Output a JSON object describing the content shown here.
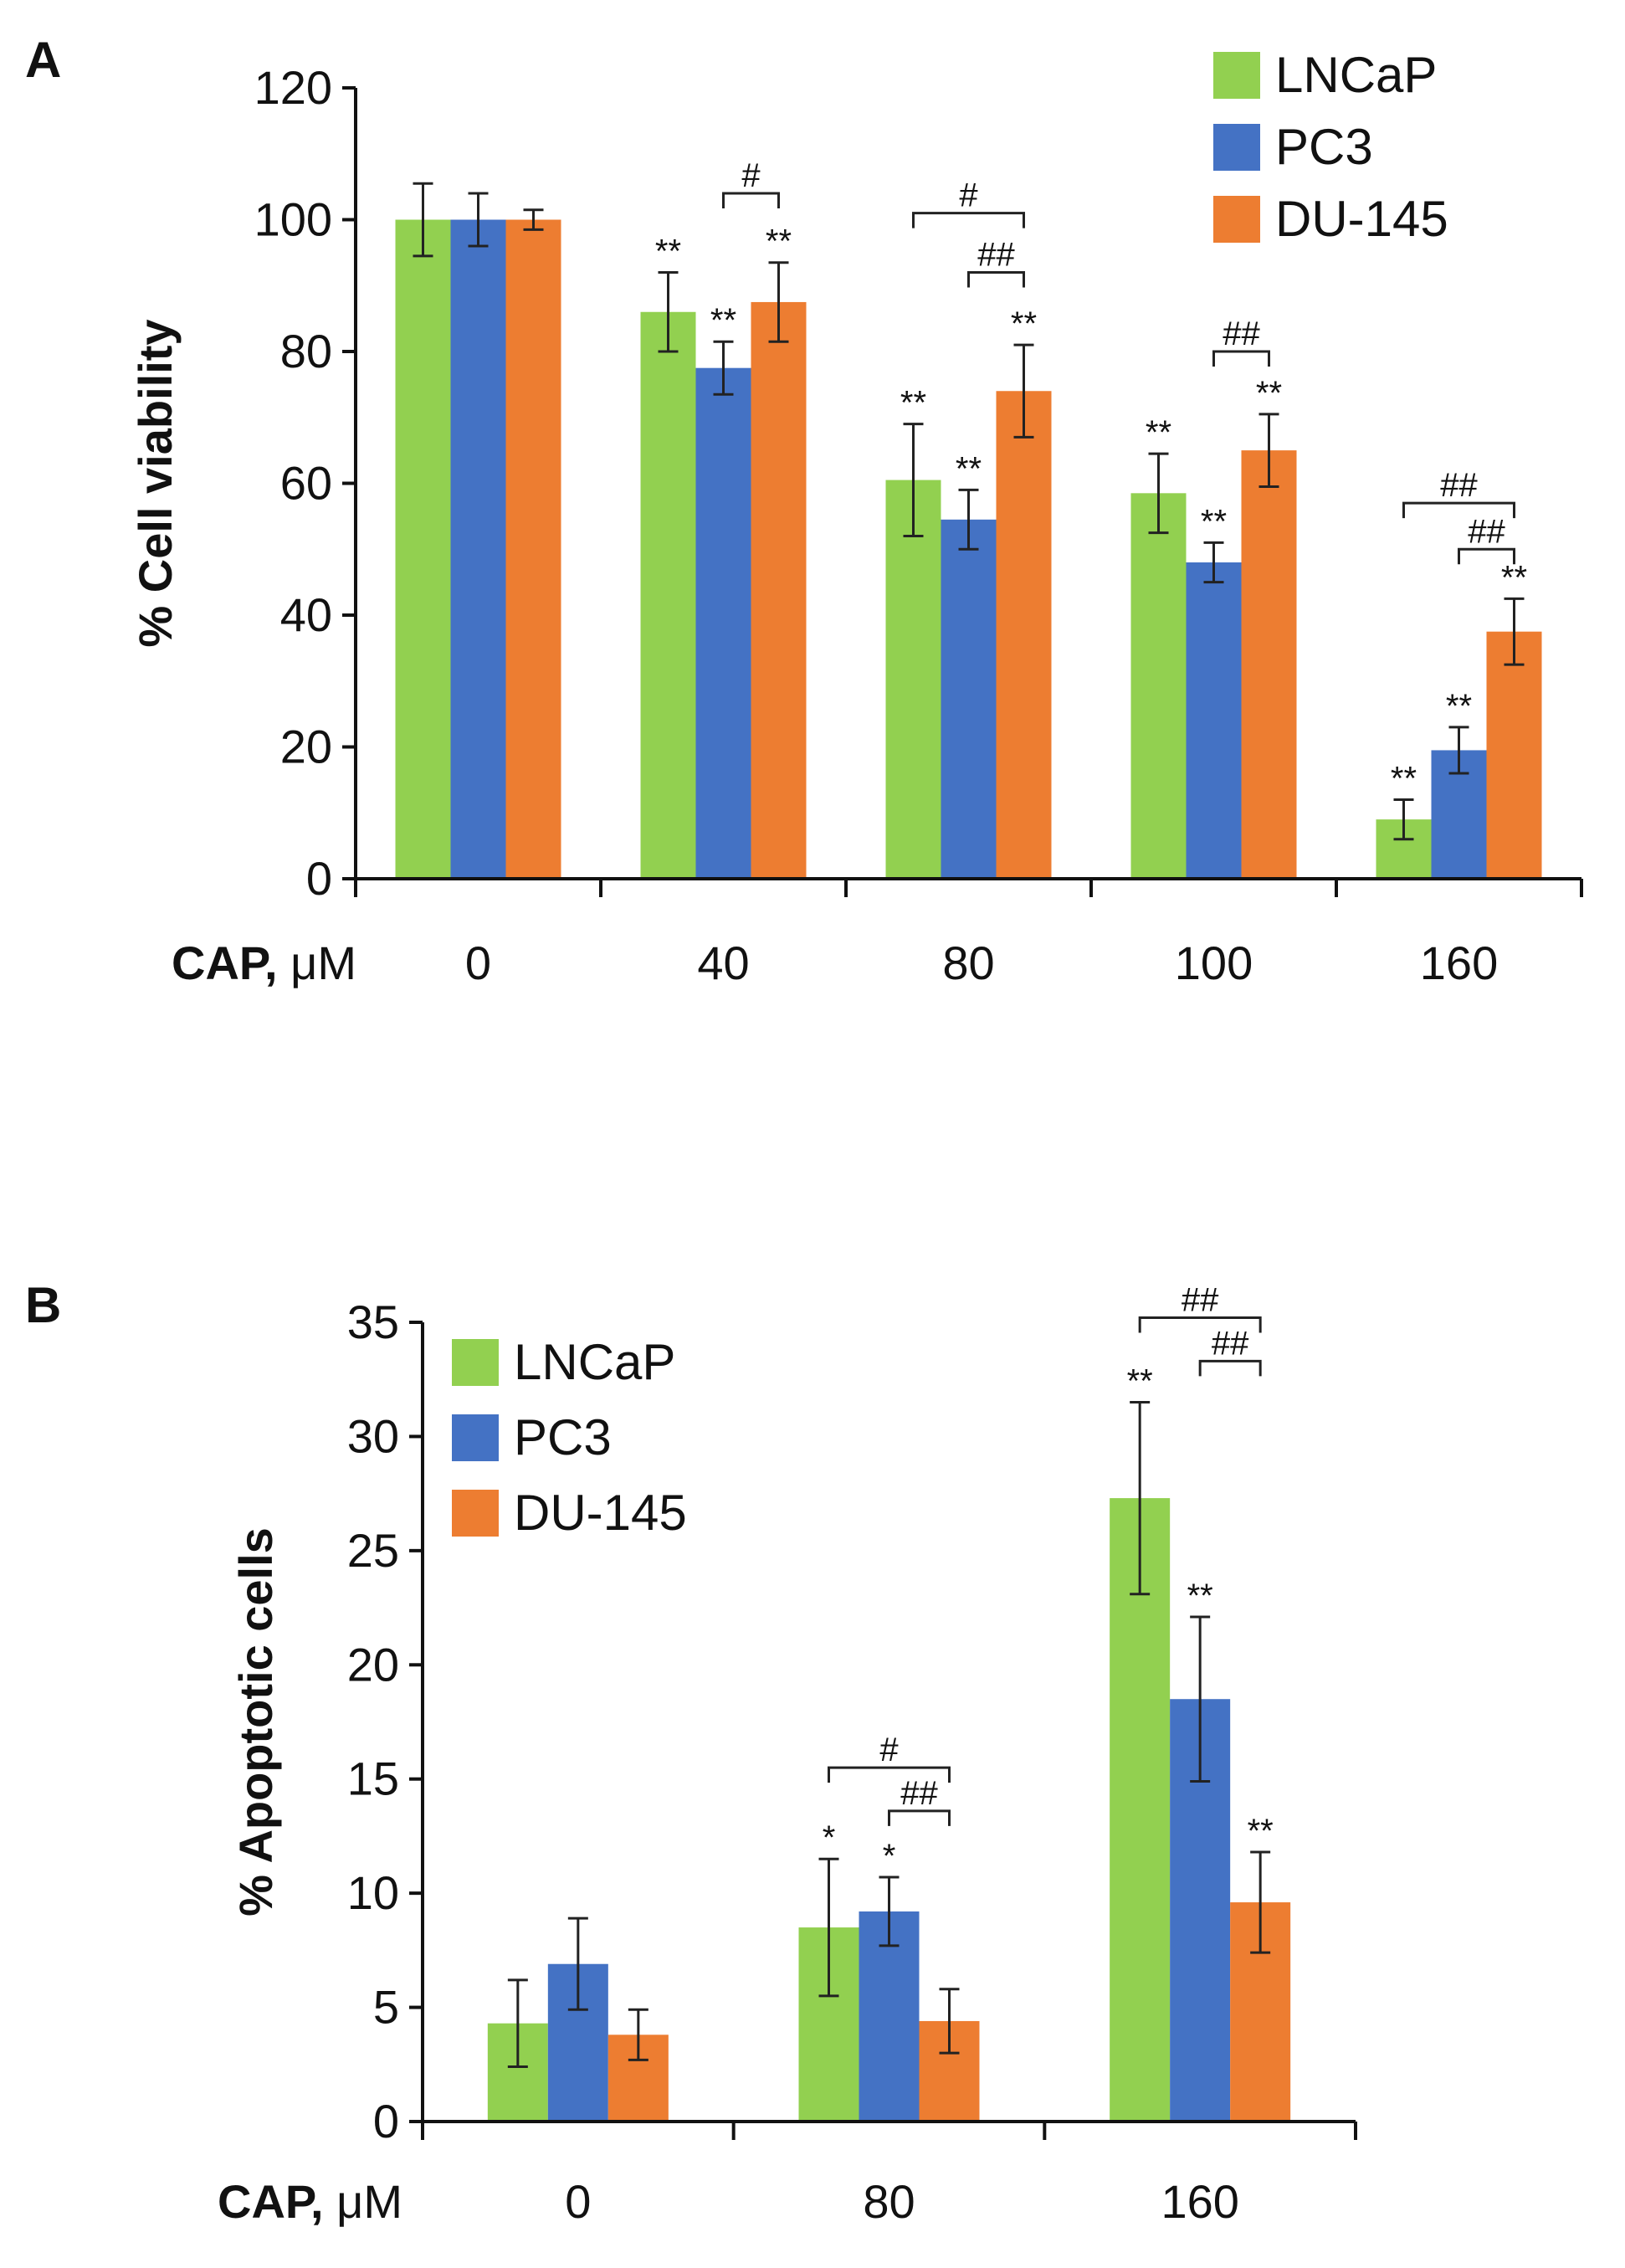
{
  "chart_data": [
    {
      "panel": "A",
      "type": "bar",
      "xlabel_bold": "CAP,",
      "xlabel_unit": " μM",
      "ylabel": "% Cell viability",
      "ylim": [
        0,
        120
      ],
      "yticks": [
        0,
        20,
        40,
        60,
        80,
        100,
        120
      ],
      "categories": [
        "0",
        "40",
        "80",
        "100",
        "160"
      ],
      "legend_position": "top-right",
      "colors": [
        "#92d050",
        "#4472c4",
        "#ed7d31"
      ],
      "series": [
        {
          "name": "LNCaP",
          "values": [
            100,
            86,
            60.5,
            58.5,
            9
          ],
          "errors": [
            5.5,
            6,
            8.5,
            6,
            3
          ],
          "sig": [
            "",
            "**",
            "**",
            "**",
            "**"
          ]
        },
        {
          "name": "PC3",
          "values": [
            100,
            77.5,
            54.5,
            48,
            19.5
          ],
          "errors": [
            4,
            4,
            4.5,
            3,
            3.5
          ],
          "sig": [
            "",
            "**",
            "**",
            "**",
            "**"
          ]
        },
        {
          "name": "DU-145",
          "values": [
            100,
            87.5,
            74,
            65,
            37.5
          ],
          "errors": [
            1.5,
            6,
            7,
            5.5,
            5
          ],
          "sig": [
            "",
            "**",
            "**",
            "**",
            "**"
          ]
        }
      ],
      "comparisons": [
        {
          "category": 1,
          "from": 1,
          "to": 2,
          "label": "#",
          "y": 104,
          "level": 0
        },
        {
          "category": 2,
          "from": 0,
          "to": 2,
          "label": "#",
          "y": 101,
          "level": 1
        },
        {
          "category": 2,
          "from": 1,
          "to": 2,
          "label": "##",
          "y": 92,
          "level": 0
        },
        {
          "category": 3,
          "from": 1,
          "to": 2,
          "label": "##",
          "y": 80,
          "level": 0
        },
        {
          "category": 4,
          "from": 0,
          "to": 2,
          "label": "##",
          "y": 57,
          "level": 1
        },
        {
          "category": 4,
          "from": 1,
          "to": 2,
          "label": "##",
          "y": 50,
          "level": 0
        }
      ]
    },
    {
      "panel": "B",
      "type": "bar",
      "xlabel_bold": "CAP,",
      "xlabel_unit": " μM",
      "ylabel": "% Apoptotic cells",
      "ylim": [
        0,
        35
      ],
      "yticks": [
        0,
        5,
        10,
        15,
        20,
        25,
        30,
        35
      ],
      "categories": [
        "0",
        "80",
        "160"
      ],
      "legend_position": "top-left",
      "colors": [
        "#92d050",
        "#4472c4",
        "#ed7d31"
      ],
      "series": [
        {
          "name": "LNCaP",
          "values": [
            4.3,
            8.5,
            27.3
          ],
          "errors": [
            1.9,
            3,
            4.2
          ],
          "sig": [
            "",
            "*",
            "**"
          ]
        },
        {
          "name": "PC3",
          "values": [
            6.9,
            9.2,
            18.5
          ],
          "errors": [
            2,
            1.5,
            3.6
          ],
          "sig": [
            "",
            "*",
            "**"
          ]
        },
        {
          "name": "DU-145",
          "values": [
            3.8,
            4.4,
            9.6
          ],
          "errors": [
            1.1,
            1.4,
            2.2
          ],
          "sig": [
            "",
            "",
            "**"
          ]
        }
      ],
      "comparisons": [
        {
          "category": 1,
          "from": 0,
          "to": 2,
          "label": "#",
          "y": 15.5,
          "level": 1
        },
        {
          "category": 1,
          "from": 1,
          "to": 2,
          "label": "##",
          "y": 13.6,
          "level": 0
        },
        {
          "category": 2,
          "from": 0,
          "to": 2,
          "label": "##",
          "y": 35.2,
          "level": 1
        },
        {
          "category": 2,
          "from": 1,
          "to": 2,
          "label": "##",
          "y": 33.3,
          "level": 0
        }
      ]
    }
  ]
}
